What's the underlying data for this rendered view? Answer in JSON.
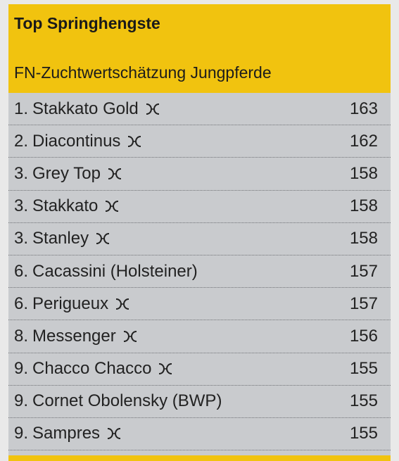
{
  "header": {
    "title": "Top Springhengste",
    "subtitle": "FN-Zuchtwertschätzung Jungpferde"
  },
  "rows": [
    {
      "rank": "1.",
      "name": "Stakkato Gold",
      "brand": "hannoveraner-brand-icon",
      "score": "163"
    },
    {
      "rank": "2.",
      "name": "Diacontinus",
      "brand": "hannoveraner-brand-icon",
      "score": "162"
    },
    {
      "rank": "3.",
      "name": "Grey Top",
      "brand": "hannoveraner-brand-icon",
      "score": "158"
    },
    {
      "rank": "3.",
      "name": "Stakkato",
      "brand": "hannoveraner-brand-icon",
      "score": "158"
    },
    {
      "rank": "3.",
      "name": "Stanley",
      "brand": "hannoveraner-brand-icon",
      "score": "158"
    },
    {
      "rank": "6.",
      "name": "Cacassini (Holsteiner)",
      "brand": "",
      "score": "157"
    },
    {
      "rank": "6.",
      "name": "Perigueux",
      "brand": "hannoveraner-brand-icon",
      "score": "157"
    },
    {
      "rank": "8.",
      "name": "Messenger",
      "brand": "hannoveraner-brand-icon",
      "score": "156"
    },
    {
      "rank": "9.",
      "name": "Chacco Chacco",
      "brand": "hannoveraner-brand-icon",
      "score": "155"
    },
    {
      "rank": "9.",
      "name": "Cornet Obolensky (BWP)",
      "brand": "",
      "score": "155"
    },
    {
      "rank": "9.",
      "name": "Sampres",
      "brand": "hannoveraner-brand-icon",
      "score": "155"
    }
  ],
  "colors": {
    "accent": "#f1c30f",
    "table_bg": "#c9cbce"
  }
}
